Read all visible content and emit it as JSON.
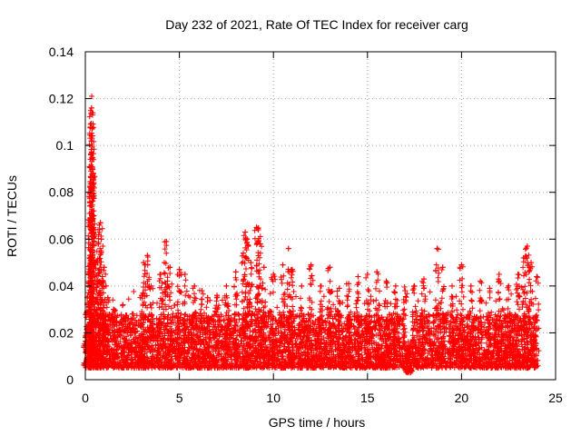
{
  "chart_data": {
    "type": "scatter",
    "title": "Day 232 of 2021, Rate Of TEC Index for receiver carg",
    "xlabel": "GPS time / hours",
    "ylabel": "ROTI / TECUs",
    "xlim": [
      0,
      25
    ],
    "ylim": [
      0,
      0.14
    ],
    "grid": true,
    "marker": "+",
    "x_ticks": [
      {
        "value": 0,
        "label": "0"
      },
      {
        "value": 5,
        "label": "5"
      },
      {
        "value": 10,
        "label": "10"
      },
      {
        "value": 15,
        "label": "15"
      },
      {
        "value": 20,
        "label": "20"
      },
      {
        "value": 25,
        "label": "25"
      }
    ],
    "y_ticks": [
      {
        "value": 0,
        "label": "0"
      },
      {
        "value": 0.02,
        "label": "0.02"
      },
      {
        "value": 0.04,
        "label": "0.04"
      },
      {
        "value": 0.06,
        "label": "0.06"
      },
      {
        "value": 0.08,
        "label": "0.08"
      },
      {
        "value": 0.1,
        "label": "0.1"
      },
      {
        "value": 0.12,
        "label": "0.12"
      },
      {
        "value": 0.14,
        "label": "0.14"
      }
    ],
    "series": [
      {
        "name": "ROTI",
        "color": "#ff0000",
        "x_range_hours": [
          0,
          24
        ],
        "baseline_range": [
          0.005,
          0.025
        ],
        "points": [
          [
            0.0,
            0.018
          ],
          [
            0.1,
            0.035
          ],
          [
            0.15,
            0.029
          ],
          [
            0.2,
            0.045
          ],
          [
            0.25,
            0.069
          ],
          [
            0.28,
            0.081
          ],
          [
            0.3,
            0.096
          ],
          [
            0.32,
            0.104
          ],
          [
            0.33,
            0.116
          ],
          [
            0.34,
            0.121
          ],
          [
            0.36,
            0.114
          ],
          [
            0.38,
            0.09
          ],
          [
            0.4,
            0.087
          ],
          [
            0.45,
            0.07
          ],
          [
            0.5,
            0.05
          ],
          [
            0.6,
            0.038
          ],
          [
            0.7,
            0.058
          ],
          [
            0.75,
            0.066
          ],
          [
            0.8,
            0.067
          ],
          [
            0.85,
            0.06
          ],
          [
            0.9,
            0.044
          ],
          [
            1.0,
            0.048
          ],
          [
            1.1,
            0.04
          ],
          [
            1.2,
            0.035
          ],
          [
            1.5,
            0.03
          ],
          [
            2.0,
            0.032
          ],
          [
            2.5,
            0.028
          ],
          [
            3.0,
            0.036
          ],
          [
            3.1,
            0.05
          ],
          [
            3.3,
            0.053
          ],
          [
            3.5,
            0.04
          ],
          [
            4.0,
            0.045
          ],
          [
            4.2,
            0.05
          ],
          [
            4.3,
            0.059
          ],
          [
            4.5,
            0.048
          ],
          [
            5.0,
            0.047
          ],
          [
            5.3,
            0.045
          ],
          [
            5.8,
            0.04
          ],
          [
            6.2,
            0.038
          ],
          [
            6.5,
            0.035
          ],
          [
            7.0,
            0.036
          ],
          [
            7.5,
            0.04
          ],
          [
            8.0,
            0.046
          ],
          [
            8.4,
            0.054
          ],
          [
            8.5,
            0.063
          ],
          [
            8.6,
            0.06
          ],
          [
            8.8,
            0.05
          ],
          [
            9.1,
            0.065
          ],
          [
            9.2,
            0.064
          ],
          [
            9.3,
            0.058
          ],
          [
            9.5,
            0.048
          ],
          [
            10.0,
            0.045
          ],
          [
            10.5,
            0.049
          ],
          [
            10.8,
            0.056
          ],
          [
            11.0,
            0.047
          ],
          [
            11.5,
            0.04
          ],
          [
            12.0,
            0.049
          ],
          [
            12.5,
            0.04
          ],
          [
            13.0,
            0.048
          ],
          [
            13.5,
            0.039
          ],
          [
            14.0,
            0.041
          ],
          [
            14.5,
            0.044
          ],
          [
            15.0,
            0.045
          ],
          [
            15.5,
            0.046
          ],
          [
            16.0,
            0.042
          ],
          [
            16.5,
            0.04
          ],
          [
            17.0,
            0.038
          ],
          [
            17.5,
            0.04
          ],
          [
            18.0,
            0.043
          ],
          [
            18.7,
            0.056
          ],
          [
            19.0,
            0.048
          ],
          [
            19.5,
            0.04
          ],
          [
            20.0,
            0.049
          ],
          [
            20.5,
            0.04
          ],
          [
            21.0,
            0.042
          ],
          [
            21.5,
            0.039
          ],
          [
            22.0,
            0.045
          ],
          [
            22.5,
            0.04
          ],
          [
            23.0,
            0.045
          ],
          [
            23.3,
            0.052
          ],
          [
            23.5,
            0.057
          ],
          [
            23.7,
            0.05
          ],
          [
            24.0,
            0.044
          ]
        ]
      }
    ]
  }
}
